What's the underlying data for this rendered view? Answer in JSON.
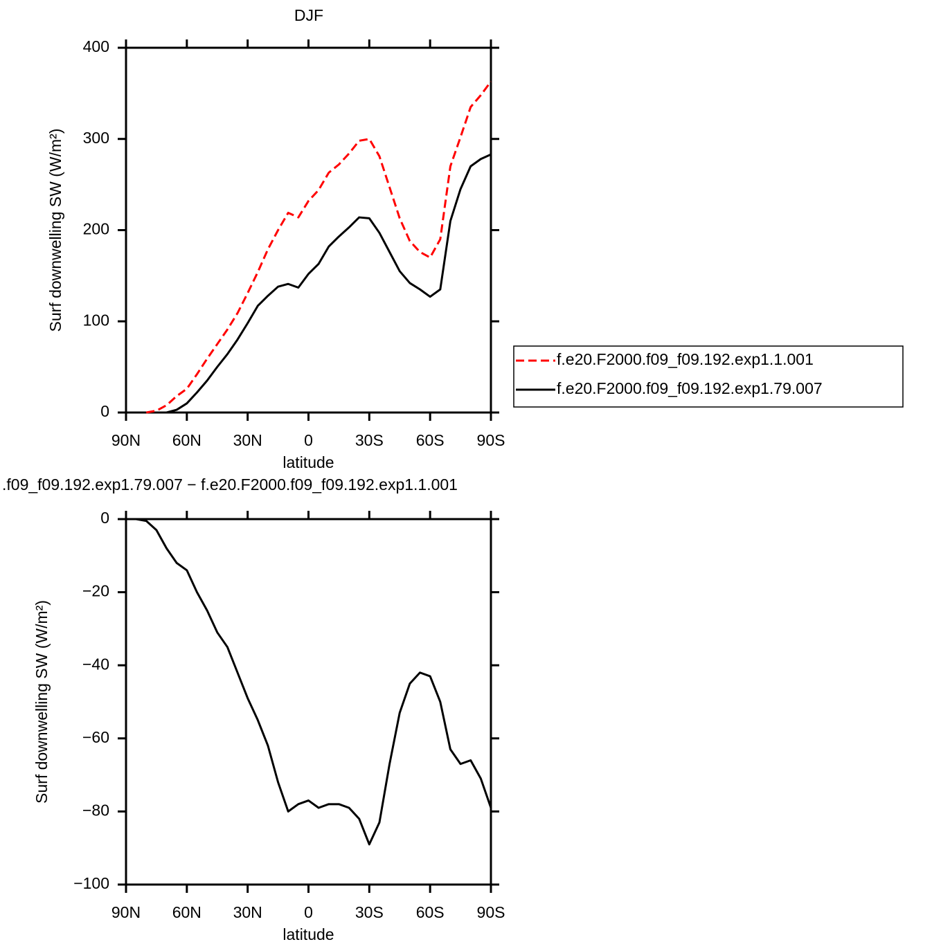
{
  "chart_data": [
    {
      "type": "line",
      "title": "DJF",
      "xlabel": "latitude",
      "ylabel": "Surf downwelling SW (W/m²)",
      "x": [
        90,
        85,
        80,
        75,
        70,
        65,
        60,
        55,
        50,
        45,
        40,
        35,
        30,
        25,
        20,
        15,
        10,
        5,
        0,
        -5,
        -10,
        -15,
        -20,
        -25,
        -30,
        -35,
        -40,
        -45,
        -50,
        -55,
        -60,
        -65,
        -70,
        -75,
        -80,
        -85,
        -90
      ],
      "xlim": [
        90,
        -90
      ],
      "xticks": [
        {
          "value": 90,
          "label": "90N"
        },
        {
          "value": 60,
          "label": "60N"
        },
        {
          "value": 30,
          "label": "30N"
        },
        0,
        {
          "value": -30,
          "label": "30S"
        },
        {
          "value": -60,
          "label": "60S"
        },
        {
          "value": -90,
          "label": "90S"
        }
      ],
      "ylim": [
        0,
        400
      ],
      "yticks": [
        0,
        100,
        200,
        300,
        400
      ],
      "legend": "right",
      "series": [
        {
          "name": "f.e20.F2000.f09_f09.192.exp1.1.001",
          "color": "#ff0000",
          "dash": true,
          "values": [
            null,
            null,
            0,
            2,
            8,
            18,
            26,
            42,
            59,
            75,
            91,
            109,
            131,
            154,
            179,
            200,
            219,
            214,
            232,
            244,
            263,
            272,
            284,
            298,
            300,
            281,
            247,
            213,
            188,
            176,
            170,
            190,
            270,
            302,
            335,
            348,
            363
          ]
        },
        {
          "name": "f.e20.F2000.f09_f09.192.exp1.79.007",
          "color": "#000000",
          "dash": false,
          "values": [
            null,
            null,
            null,
            null,
            0,
            3,
            10,
            22,
            35,
            50,
            64,
            80,
            98,
            117,
            128,
            138,
            141,
            137,
            152,
            163,
            182,
            193,
            203,
            214,
            213,
            197,
            176,
            155,
            142,
            135,
            127,
            135,
            210,
            245,
            270,
            278,
            283
          ]
        }
      ]
    },
    {
      "type": "line",
      "title": ".f09_f09.192.exp1.79.007 − f.e20.F2000.f09_f09.192.exp1.1.001",
      "xlabel": "latitude",
      "ylabel": "Surf downwelling SW (W/m²)",
      "x": [
        90,
        85,
        80,
        75,
        70,
        65,
        60,
        55,
        50,
        45,
        40,
        35,
        30,
        25,
        20,
        15,
        10,
        5,
        0,
        -5,
        -10,
        -15,
        -20,
        -25,
        -30,
        -35,
        -40,
        -45,
        -50,
        -55,
        -60,
        -65,
        -70,
        -75,
        -80,
        -85,
        -90
      ],
      "xlim": [
        90,
        -90
      ],
      "xticks": [
        {
          "value": 90,
          "label": "90N"
        },
        {
          "value": 60,
          "label": "60N"
        },
        {
          "value": 30,
          "label": "30N"
        },
        0,
        {
          "value": -30,
          "label": "30S"
        },
        {
          "value": -60,
          "label": "60S"
        },
        {
          "value": -90,
          "label": "90S"
        }
      ],
      "ylim": [
        -100,
        0
      ],
      "yticks": [
        {
          "value": -100,
          "label": "−100"
        },
        {
          "value": -80,
          "label": "−80"
        },
        {
          "value": -60,
          "label": "−60"
        },
        {
          "value": -40,
          "label": "−40"
        },
        {
          "value": -20,
          "label": "−20"
        },
        0
      ],
      "series": [
        {
          "color": "#000000",
          "dash": false,
          "values": [
            0,
            0,
            -0.5,
            -3,
            -8,
            -12,
            -14,
            -20,
            -25,
            -31,
            -35,
            -42,
            -49,
            -55,
            -62,
            -72,
            -80,
            -78,
            -77,
            -79,
            -78,
            -78,
            -79,
            -82,
            -89,
            -83,
            -67,
            -53,
            -45,
            -42,
            -43,
            -50,
            -63,
            -67,
            -66,
            -71,
            -79
          ]
        }
      ]
    }
  ]
}
